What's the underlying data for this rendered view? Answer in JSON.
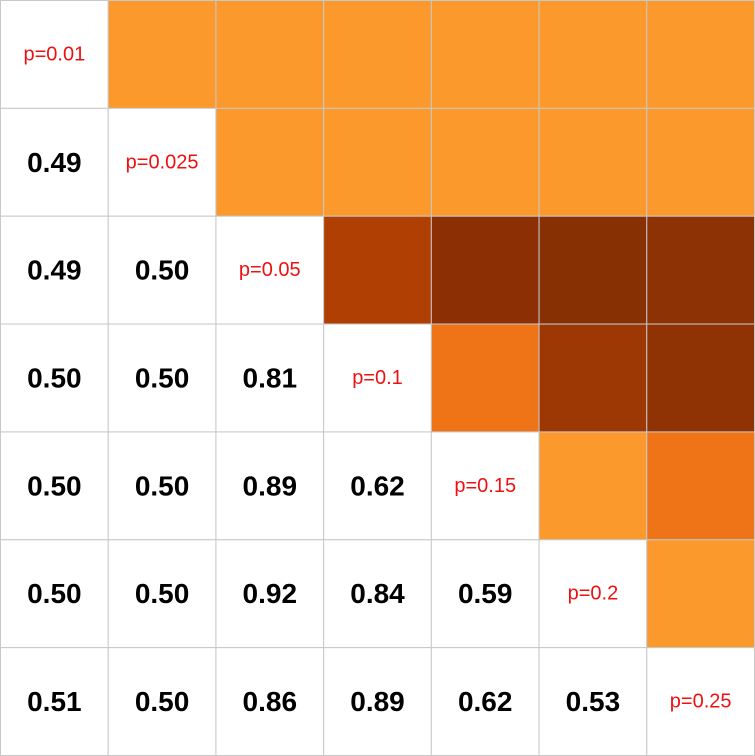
{
  "chart_data": {
    "type": "heatmap",
    "title": "",
    "xlabel": "",
    "ylabel": "",
    "grid": true,
    "legend": "none",
    "diagonal_labels": [
      "p=0.01",
      "p=0.025",
      "p=0.05",
      "p=0.1",
      "p=0.15",
      "p=0.2",
      "p=0.25"
    ],
    "lower_values": [
      [
        null,
        null,
        null,
        null,
        null,
        null,
        null
      ],
      [
        "0.49",
        null,
        null,
        null,
        null,
        null,
        null
      ],
      [
        "0.49",
        "0.50",
        null,
        null,
        null,
        null,
        null
      ],
      [
        "0.50",
        "0.50",
        "0.81",
        null,
        null,
        null,
        null
      ],
      [
        "0.50",
        "0.50",
        "0.89",
        "0.62",
        null,
        null,
        null
      ],
      [
        "0.50",
        "0.50",
        "0.92",
        "0.84",
        "0.59",
        null,
        null
      ],
      [
        "0.51",
        "0.50",
        "0.86",
        "0.89",
        "0.62",
        "0.53",
        null
      ]
    ],
    "upper_colors": [
      [
        null,
        "#fc992c",
        "#fc992c",
        "#fc992c",
        "#fc992c",
        "#fc992c",
        "#fc992c"
      ],
      [
        null,
        null,
        "#fc992c",
        "#fc992c",
        "#fc992c",
        "#fc992c",
        "#fc992c"
      ],
      [
        null,
        null,
        null,
        "#b03f03",
        "#8c2f05",
        "#873004",
        "#8c3204"
      ],
      [
        null,
        null,
        null,
        null,
        "#ee7417",
        "#9d3704",
        "#8f3304"
      ],
      [
        null,
        null,
        null,
        null,
        null,
        "#fc992c",
        "#ee7417"
      ],
      [
        null,
        null,
        null,
        null,
        null,
        null,
        "#fc992c"
      ],
      [
        null,
        null,
        null,
        null,
        null,
        null,
        null
      ]
    ],
    "colors": {
      "empty_cell": "#ffffff",
      "grid_line": "#c8c8c8",
      "value_text": "#000000",
      "diagonal_text": "#ee1111"
    }
  }
}
